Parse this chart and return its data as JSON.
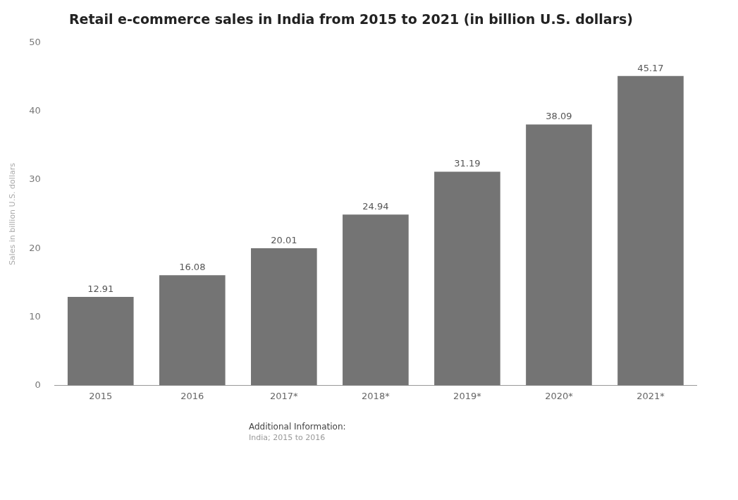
{
  "chart_data": {
    "type": "bar",
    "title": "Retail e-commerce sales in India from 2015 to 2021 (in billion U.S. dollars)",
    "ylabel": "Sales in billion U.S. dollars",
    "categories": [
      "2015",
      "2016",
      "2017*",
      "2018*",
      "2019*",
      "2020*",
      "2021*"
    ],
    "values": [
      12.91,
      16.08,
      20.01,
      24.94,
      31.19,
      38.09,
      45.17
    ],
    "color": "#747474",
    "ylim": [
      0,
      50
    ],
    "yticks": [
      0,
      10,
      20,
      30,
      40,
      50
    ],
    "grid": false,
    "legend": false,
    "data_labels": true,
    "annotations": [
      "Additional Information:",
      "India; 2015 to 2016"
    ]
  }
}
